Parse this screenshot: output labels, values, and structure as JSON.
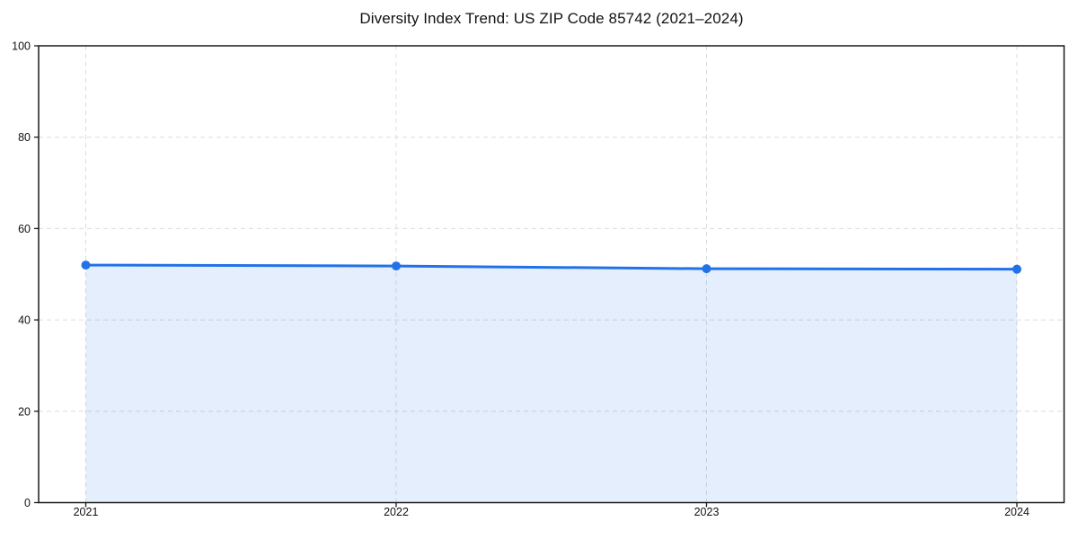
{
  "chart_data": {
    "type": "line",
    "title": "Diversity Index Trend: US ZIP Code 85742 (2021–2024)",
    "categories": [
      "2021",
      "2022",
      "2023",
      "2024"
    ],
    "series": [
      {
        "name": "Diversity Index",
        "values": [
          52.0,
          51.8,
          51.2,
          51.1
        ]
      }
    ],
    "xlabel": "",
    "ylabel": "",
    "ylim": [
      0,
      100
    ],
    "yticks": [
      0,
      20,
      40,
      60,
      80,
      100
    ],
    "grid": true,
    "grid_style": "dashed",
    "legend_position": "none",
    "area_fill": true,
    "fill_opacity": 0.12,
    "colors": {
      "line": "#2172e8",
      "marker": "#2172e8",
      "grid": "#dcdcdc",
      "axis": "#1a1a1a",
      "text": "#111111",
      "background": "#ffffff"
    }
  }
}
